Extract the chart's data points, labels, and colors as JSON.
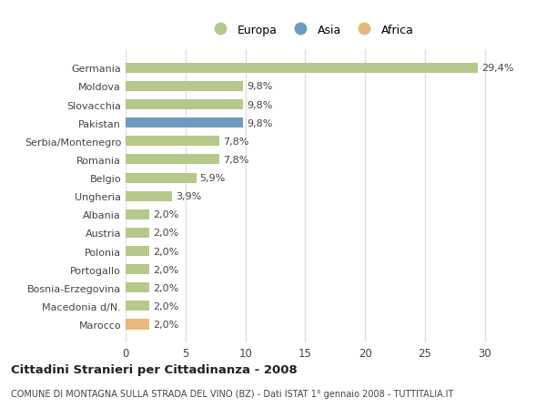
{
  "categories": [
    "Germania",
    "Moldova",
    "Slovacchia",
    "Pakistan",
    "Serbia/Montenegro",
    "Romania",
    "Belgio",
    "Ungheria",
    "Albania",
    "Austria",
    "Polonia",
    "Portogallo",
    "Bosnia-Erzegovina",
    "Macedonia d/N.",
    "Marocco"
  ],
  "values": [
    29.4,
    9.8,
    9.8,
    9.8,
    7.8,
    7.8,
    5.9,
    3.9,
    2.0,
    2.0,
    2.0,
    2.0,
    2.0,
    2.0,
    2.0
  ],
  "labels": [
    "29,4%",
    "9,8%",
    "9,8%",
    "9,8%",
    "7,8%",
    "7,8%",
    "5,9%",
    "3,9%",
    "2,0%",
    "2,0%",
    "2,0%",
    "2,0%",
    "2,0%",
    "2,0%",
    "2,0%"
  ],
  "colors": [
    "#b5c98a",
    "#b5c98a",
    "#b5c98a",
    "#7099c2",
    "#b5c98a",
    "#b5c98a",
    "#b5c98a",
    "#b5c98a",
    "#b5c98a",
    "#b5c98a",
    "#b5c98a",
    "#b5c98a",
    "#b5c98a",
    "#b5c98a",
    "#e8b87a"
  ],
  "legend_entries": [
    {
      "label": "Europa",
      "color": "#b5c98a"
    },
    {
      "label": "Asia",
      "color": "#7099c2"
    },
    {
      "label": "Africa",
      "color": "#e8b87a"
    }
  ],
  "title": "Cittadini Stranieri per Cittadinanza - 2008",
  "subtitle": "COMUNE DI MONTAGNA SULLA STRADA DEL VINO (BZ) - Dati ISTAT 1° gennaio 2008 - TUTTITALIA.IT",
  "xlim": [
    0,
    31
  ],
  "xticks": [
    0,
    5,
    10,
    15,
    20,
    25,
    30
  ],
  "background_color": "#ffffff",
  "plot_bg_color": "#ffffff",
  "bar_height": 0.55,
  "grid_color": "#e0e0e0",
  "text_color": "#444444",
  "label_fontsize": 8.0,
  "ytick_fontsize": 8.0,
  "xtick_fontsize": 8.5,
  "title_fontsize": 9.5,
  "subtitle_fontsize": 7.0
}
